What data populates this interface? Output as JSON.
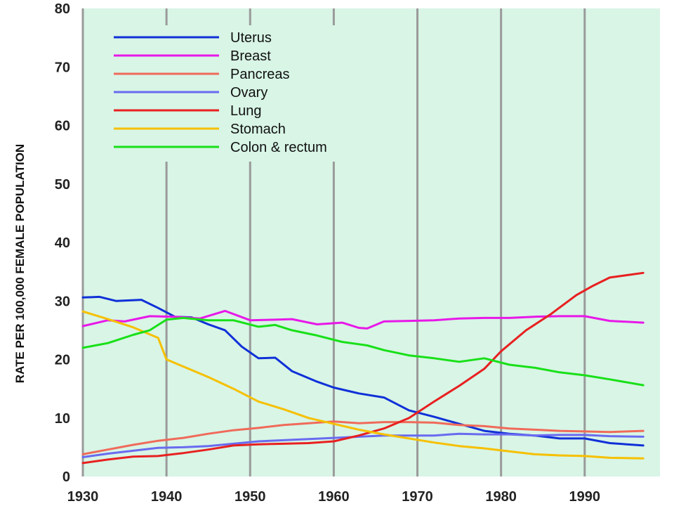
{
  "chart_data": {
    "type": "line",
    "title": "",
    "xlabel": "",
    "ylabel": "RATE PER 100,000 FEMALE POPULATION",
    "xlim": [
      1930,
      1997
    ],
    "ylim": [
      0,
      80
    ],
    "x_ticks": [
      1930,
      1940,
      1950,
      1960,
      1970,
      1980,
      1990
    ],
    "y_ticks": [
      0,
      10,
      20,
      30,
      40,
      50,
      60,
      70,
      80
    ],
    "grid": "vertical",
    "legend_position": "top-left",
    "background_color": "#d8f5e6",
    "series": [
      {
        "name": "Uterus",
        "color": "#1030d8",
        "x": [
          1930,
          1932,
          1934,
          1937,
          1939,
          1941,
          1943,
          1945,
          1947,
          1949,
          1951,
          1953,
          1955,
          1958,
          1960,
          1963,
          1966,
          1969,
          1972,
          1975,
          1978,
          1981,
          1984,
          1987,
          1990,
          1993,
          1997
        ],
        "values": [
          30.6,
          30.7,
          30.0,
          30.2,
          28.8,
          27.3,
          27.2,
          26.0,
          25.0,
          22.2,
          20.2,
          20.3,
          18.0,
          16.2,
          15.2,
          14.2,
          13.5,
          11.3,
          10.2,
          9.0,
          7.8,
          7.3,
          7.0,
          6.5,
          6.5,
          5.7,
          5.3
        ]
      },
      {
        "name": "Breast",
        "color": "#e818e8",
        "x": [
          1930,
          1933,
          1935,
          1938,
          1941,
          1944,
          1947,
          1950,
          1953,
          1955,
          1958,
          1961,
          1963,
          1964,
          1966,
          1969,
          1972,
          1975,
          1978,
          1981,
          1984,
          1987,
          1990,
          1993,
          1997
        ],
        "values": [
          25.7,
          26.7,
          26.5,
          27.4,
          27.3,
          27.0,
          28.3,
          26.7,
          26.8,
          26.9,
          26.0,
          26.3,
          25.4,
          25.3,
          26.5,
          26.6,
          26.7,
          27.0,
          27.1,
          27.1,
          27.3,
          27.4,
          27.4,
          26.6,
          26.3
        ]
      },
      {
        "name": "Pancreas",
        "color": "#f06a5a",
        "x": [
          1930,
          1933,
          1936,
          1939,
          1942,
          1945,
          1948,
          1951,
          1954,
          1957,
          1960,
          1963,
          1966,
          1969,
          1972,
          1975,
          1978,
          1981,
          1984,
          1987,
          1990,
          1993,
          1997
        ],
        "values": [
          3.8,
          4.6,
          5.4,
          6.1,
          6.6,
          7.3,
          7.9,
          8.3,
          8.8,
          9.1,
          9.4,
          9.1,
          9.3,
          9.3,
          9.2,
          8.8,
          8.6,
          8.2,
          8.0,
          7.8,
          7.7,
          7.6,
          7.8
        ]
      },
      {
        "name": "Ovary",
        "color": "#6a6af0",
        "x": [
          1930,
          1933,
          1936,
          1939,
          1942,
          1945,
          1948,
          1951,
          1954,
          1957,
          1960,
          1963,
          1966,
          1969,
          1972,
          1975,
          1978,
          1981,
          1984,
          1987,
          1990,
          1993,
          1997
        ],
        "values": [
          3.3,
          3.9,
          4.4,
          4.9,
          5.0,
          5.2,
          5.6,
          6.0,
          6.2,
          6.4,
          6.6,
          6.8,
          7.0,
          7.0,
          7.0,
          7.3,
          7.2,
          7.2,
          7.0,
          7.1,
          7.1,
          6.9,
          6.8
        ]
      },
      {
        "name": "Lung",
        "color": "#e82020",
        "x": [
          1930,
          1933,
          1936,
          1939,
          1942,
          1945,
          1948,
          1951,
          1954,
          1957,
          1960,
          1963,
          1966,
          1969,
          1972,
          1975,
          1978,
          1980,
          1983,
          1986,
          1989,
          1991,
          1993,
          1997
        ],
        "values": [
          2.3,
          2.9,
          3.4,
          3.5,
          4.0,
          4.6,
          5.3,
          5.5,
          5.6,
          5.7,
          6.0,
          7.0,
          8.2,
          10.0,
          12.8,
          15.5,
          18.4,
          21.4,
          25.0,
          27.8,
          31.0,
          32.6,
          34.0,
          34.8
        ]
      },
      {
        "name": "Stomach",
        "color": "#f6c000",
        "x": [
          1930,
          1933,
          1936,
          1939,
          1940,
          1942,
          1945,
          1948,
          1951,
          1954,
          1957,
          1960,
          1963,
          1966,
          1969,
          1972,
          1975,
          1978,
          1981,
          1984,
          1987,
          1990,
          1993,
          1997
        ],
        "values": [
          28.2,
          26.9,
          25.5,
          23.7,
          20.0,
          18.8,
          17.0,
          15.0,
          12.8,
          11.5,
          10.0,
          9.0,
          8.0,
          7.2,
          6.5,
          5.8,
          5.2,
          4.8,
          4.3,
          3.8,
          3.6,
          3.5,
          3.2,
          3.1
        ]
      },
      {
        "name": "Colon & rectum",
        "color": "#18e018",
        "x": [
          1930,
          1933,
          1936,
          1938,
          1940,
          1942,
          1945,
          1948,
          1951,
          1953,
          1955,
          1958,
          1961,
          1964,
          1966,
          1969,
          1972,
          1975,
          1978,
          1981,
          1984,
          1987,
          1990,
          1993,
          1997
        ],
        "values": [
          22.0,
          22.8,
          24.2,
          25.0,
          26.8,
          27.1,
          26.7,
          26.7,
          25.6,
          25.9,
          25.0,
          24.1,
          23.0,
          22.4,
          21.6,
          20.7,
          20.2,
          19.6,
          20.2,
          19.1,
          18.6,
          17.8,
          17.3,
          16.6,
          15.6
        ]
      }
    ]
  }
}
